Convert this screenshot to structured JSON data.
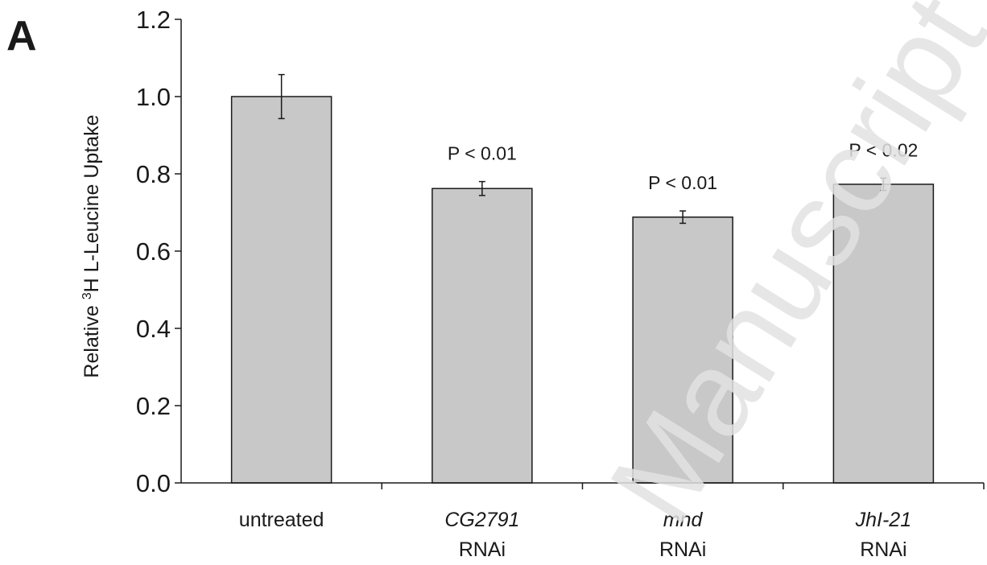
{
  "panel_label": "A",
  "watermark": "Manuscript",
  "colors": {
    "bar_fill": "#c8c8c8",
    "bar_stroke": "#1a1a1a",
    "axis": "#1a1a1a",
    "text": "#1a1a1a"
  },
  "chart_data": {
    "type": "bar",
    "title": "",
    "ylabel": "Relative ³H L-Leucine Uptake",
    "ylabel_parts": {
      "pre": "Relative ",
      "sup": "3",
      "post": "H L-Leucine Uptake"
    },
    "xlabel": "",
    "ylim": [
      0,
      1.2
    ],
    "yticks": [
      "0.0",
      "0.2",
      "0.4",
      "0.6",
      "0.8",
      "1.0",
      "1.2"
    ],
    "grid": false,
    "categories": [
      {
        "name": "CG2791 RNAi",
        "line1": "untreated",
        "line1_italic": false,
        "line2": ""
      },
      {
        "name": "CG2791 RNAi",
        "line1": "CG2791",
        "line1_italic": true,
        "line2": "RNAi"
      },
      {
        "name": "mnd RNAi",
        "line1": "mnd",
        "line1_italic": true,
        "line2": "RNAi"
      },
      {
        "name": "JhI-21 RNAi",
        "line1": "JhI-21",
        "line1_italic": true,
        "line2": "RNAi"
      }
    ],
    "values": [
      1.0,
      0.762,
      0.688,
      0.773
    ],
    "errors": [
      0.057,
      0.018,
      0.016,
      0.016
    ],
    "annotations": [
      "",
      "P < 0.01",
      "P < 0.01",
      "P < 0.02"
    ]
  }
}
